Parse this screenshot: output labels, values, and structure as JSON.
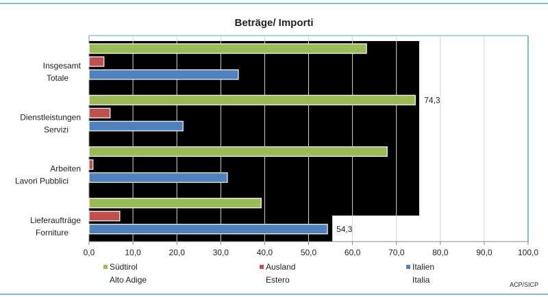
{
  "chart_data": {
    "type": "bar",
    "orientation": "horizontal",
    "title": "Beträge/ Importi",
    "categories": [
      [
        "Insgesamt",
        "Totale"
      ],
      [
        "Dienstleistungen",
        "Servizi"
      ],
      [
        "Arbeiten",
        "Lavori Pubblici"
      ],
      [
        "Lieferaufträge",
        "Forniture"
      ]
    ],
    "series": [
      {
        "name": [
          "Südtirol",
          "Alto Adige"
        ],
        "color": "#9bbb59",
        "values": [
          63.2,
          74.3,
          67.9,
          39.2
        ]
      },
      {
        "name": [
          "Ausland",
          "Estero"
        ],
        "color": "#c0504d",
        "values": [
          3.4,
          4.8,
          0.9,
          7.0
        ]
      },
      {
        "name": [
          "Italien",
          "Italia"
        ],
        "color": "#4f81bd",
        "values": [
          34.0,
          21.4,
          31.5,
          54.3
        ]
      }
    ],
    "data_labels": [
      {
        "series": 0,
        "category": 1,
        "text": "74,3"
      },
      {
        "series": 2,
        "category": 3,
        "text": "54,3"
      }
    ],
    "xlim": [
      0,
      100
    ],
    "xticks": [
      "0,0",
      "10,0",
      "20,0",
      "30,0",
      "40,0",
      "50,0",
      "60,0",
      "70,0",
      "80,0",
      "90,0",
      "100,0"
    ],
    "grid": true,
    "legend": "bottom",
    "source": "ACP/SICP"
  },
  "colors": {
    "frame": "#4bacc6",
    "background_block": "#000000",
    "grid": "#d9d9d9"
  }
}
